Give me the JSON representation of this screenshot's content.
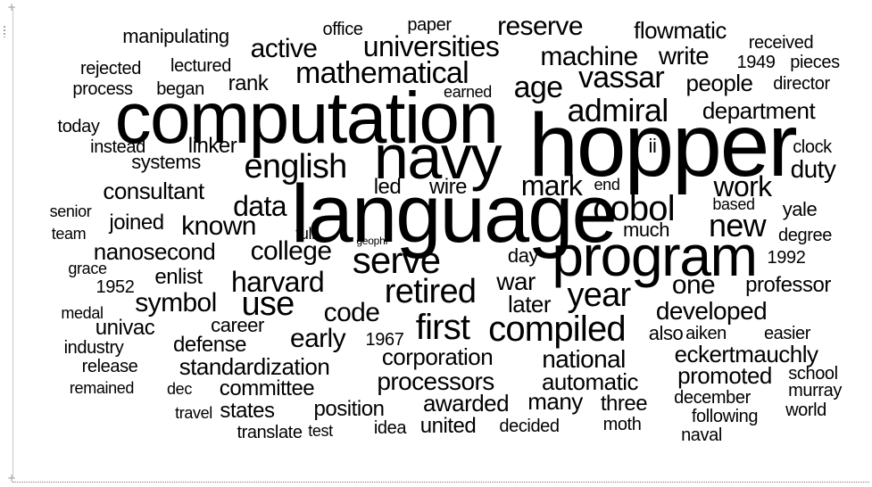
{
  "word_cloud": {
    "text_color": "#000000",
    "words": [
      "hopper",
      "computation",
      "navy",
      "language",
      "program",
      "serve",
      "retired",
      "first",
      "compiled",
      "year",
      "cobol",
      "english",
      "mathematical",
      "universities",
      "admiral",
      "age",
      "vassar",
      "machine",
      "active",
      "reserve",
      "mark",
      "work",
      "new",
      "data",
      "known",
      "college",
      "harvard",
      "use",
      "symbol",
      "code",
      "early",
      "war",
      "later",
      "one",
      "developed",
      "corporation",
      "processors",
      "national",
      "automatic",
      "eckertmauchly",
      "promoted",
      "standardization",
      "committee",
      "states",
      "position",
      "awarded",
      "united",
      "many",
      "three",
      "department",
      "people",
      "write",
      "flowmatic",
      "duty",
      "clock",
      "ii",
      "end",
      "wire",
      "led",
      "linker",
      "systems",
      "consultant",
      "joined",
      "nanosecond",
      "enlist",
      "rank",
      "manipulating",
      "office",
      "paper",
      "received",
      "1949",
      "pieces",
      "director",
      "rejected",
      "lectured",
      "process",
      "began",
      "earned",
      "today",
      "instead",
      "senior",
      "team",
      "grace",
      "1952",
      "medal",
      "univac",
      "industry",
      "release",
      "remained",
      "dec",
      "travel",
      "translate",
      "test",
      "idea",
      "decided",
      "moth",
      "naval",
      "december",
      "following",
      "world",
      "murray",
      "school",
      "easier",
      "aiken",
      "also",
      "professor",
      "1992",
      "degree",
      "yale",
      "based",
      "much",
      "day",
      "full",
      "geophf",
      "career",
      "defense",
      "1967"
    ]
  }
}
